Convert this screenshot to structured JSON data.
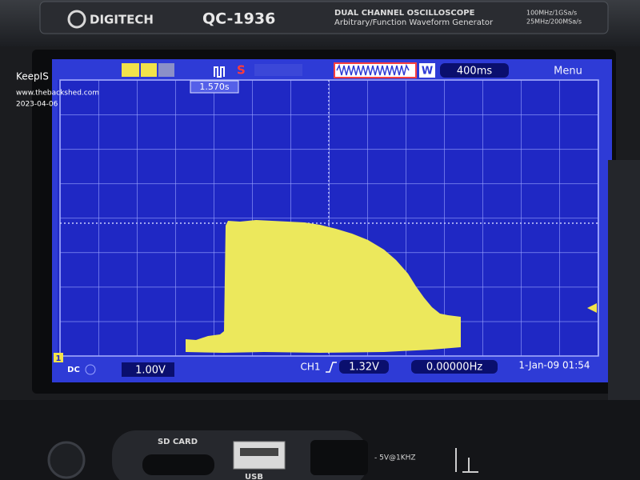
{
  "header": {
    "brand": "DIGITECH",
    "model": "QC-1936",
    "description": "DUAL CHANNEL OSCILLOSCOPE",
    "subtitle": "Arbitrary/Function Waveform Generator",
    "spec_1": "100MHz/1GSa/s",
    "spec_2": "25MHz/200MSa/s"
  },
  "watermark": {
    "author": "KeepIS",
    "site": "www.thebackshed.com",
    "date": "2023-04-06"
  },
  "screen": {
    "trigger_mode": "S",
    "trigger_position": "1.570s",
    "waveform_label": "W",
    "timebase": "400ms",
    "menu": "Menu",
    "channel_marker": "1",
    "coupling": "DC",
    "volts_per_div": "1.00V",
    "trigger_channel": "CH1",
    "trigger_level": "1.32V",
    "frequency": "0.00000Hz",
    "datetime": "1-Jan-09 01:54"
  },
  "panel": {
    "sd_card": "SD CARD",
    "usb": "USB",
    "probe_comp": "- 5V@1KHZ"
  }
}
